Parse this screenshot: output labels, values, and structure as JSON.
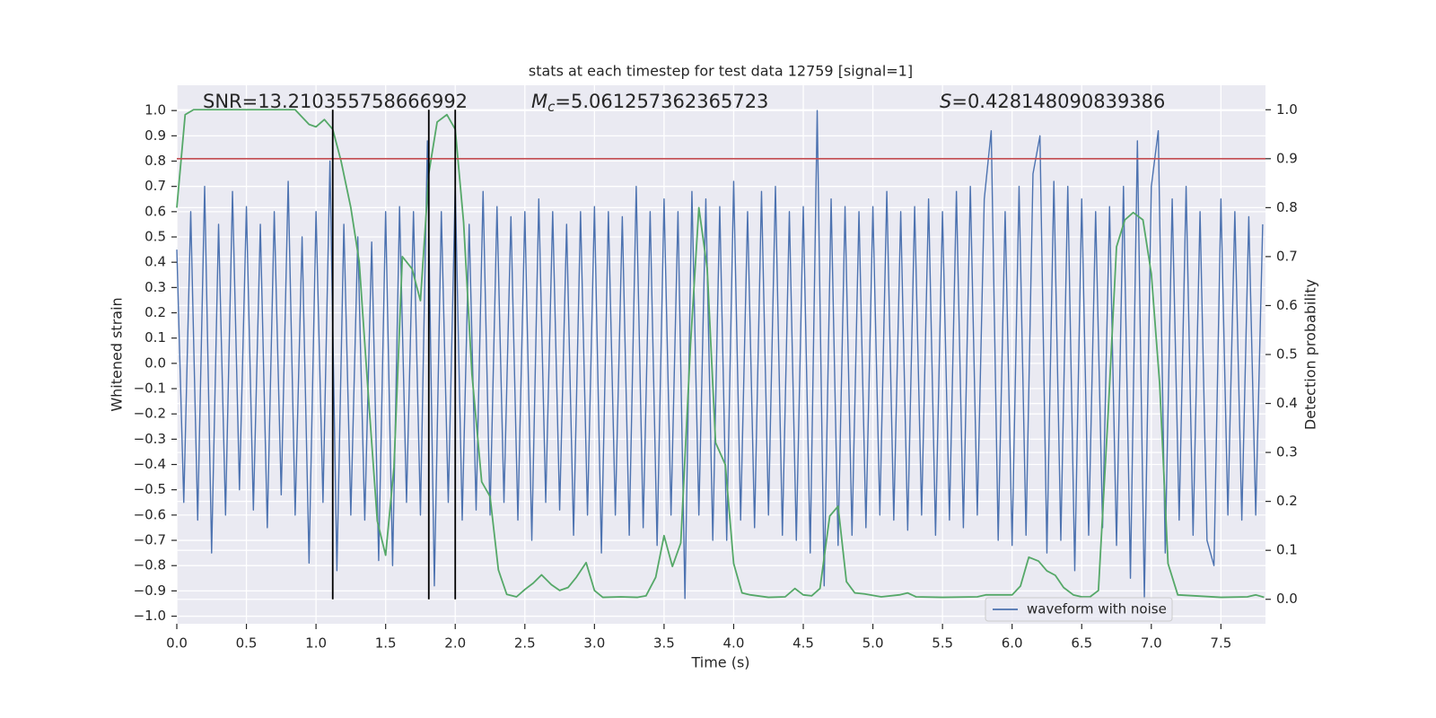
{
  "chart_data": {
    "type": "line",
    "title": "stats at each timestep for test data 12759 [signal=1]",
    "xlabel": "Time (s)",
    "ylabel": "Whitened strain",
    "y2label": "Detection probability",
    "xlim": [
      0,
      7.82
    ],
    "ylim": [
      -1.03,
      1.1
    ],
    "y2lim": [
      -0.05,
      1.05
    ],
    "grid": true,
    "legend": "lower right",
    "xticks": [
      {
        "value": 0,
        "label": "0.0"
      },
      {
        "value": 0.5,
        "label": "0.5"
      },
      {
        "value": 1,
        "label": "1.0"
      },
      {
        "value": 1.5,
        "label": "1.5"
      },
      {
        "value": 2,
        "label": "2.0"
      },
      {
        "value": 2.5,
        "label": "2.5"
      },
      {
        "value": 3,
        "label": "3.0"
      },
      {
        "value": 3.5,
        "label": "3.5"
      },
      {
        "value": 4,
        "label": "4.0"
      },
      {
        "value": 4.5,
        "label": "4.5"
      },
      {
        "value": 5,
        "label": "5.0"
      },
      {
        "value": 5.5,
        "label": "5.5"
      },
      {
        "value": 6,
        "label": "6.0"
      },
      {
        "value": 6.5,
        "label": "6.5"
      },
      {
        "value": 7,
        "label": "7.0"
      },
      {
        "value": 7.5,
        "label": "7.5"
      }
    ],
    "yticks": [
      {
        "value": -1,
        "label": "−1.0"
      },
      {
        "value": -0.9,
        "label": "−0.9"
      },
      {
        "value": -0.8,
        "label": "−0.8"
      },
      {
        "value": -0.7,
        "label": "−0.7"
      },
      {
        "value": -0.6,
        "label": "−0.6"
      },
      {
        "value": -0.5,
        "label": "−0.5"
      },
      {
        "value": -0.4,
        "label": "−0.4"
      },
      {
        "value": -0.3,
        "label": "−0.3"
      },
      {
        "value": -0.2,
        "label": "−0.2"
      },
      {
        "value": -0.1,
        "label": "−0.1"
      },
      {
        "value": 0,
        "label": "0.0"
      },
      {
        "value": 0.1,
        "label": "0.1"
      },
      {
        "value": 0.2,
        "label": "0.2"
      },
      {
        "value": 0.3,
        "label": "0.3"
      },
      {
        "value": 0.4,
        "label": "0.4"
      },
      {
        "value": 0.5,
        "label": "0.5"
      },
      {
        "value": 0.6,
        "label": "0.6"
      },
      {
        "value": 0.7,
        "label": "0.7"
      },
      {
        "value": 0.8,
        "label": "0.8"
      },
      {
        "value": 0.9,
        "label": "0.9"
      },
      {
        "value": 1,
        "label": "1.0"
      }
    ],
    "y2ticks": [
      {
        "value": 0,
        "label": "0.0"
      },
      {
        "value": 0.1,
        "label": "0.1"
      },
      {
        "value": 0.2,
        "label": "0.2"
      },
      {
        "value": 0.3,
        "label": "0.3"
      },
      {
        "value": 0.4,
        "label": "0.4"
      },
      {
        "value": 0.5,
        "label": "0.5"
      },
      {
        "value": 0.6,
        "label": "0.6"
      },
      {
        "value": 0.7,
        "label": "0.7"
      },
      {
        "value": 0.8,
        "label": "0.8"
      },
      {
        "value": 0.9,
        "label": "0.9"
      },
      {
        "value": 1,
        "label": "1.0"
      }
    ],
    "annotations": [
      {
        "text": "SNR=13.210355758666992"
      },
      {
        "italic": "M",
        "sub": "c",
        "text": "=5.061257362365723"
      },
      {
        "italic": "S",
        "text": "=0.428148090839386"
      }
    ],
    "hline": {
      "y2": 0.9,
      "color": "#c44e52"
    },
    "vlines": {
      "x": [
        1.12,
        1.81,
        2.0
      ],
      "y2": [
        0,
        1
      ],
      "color": "#000000"
    },
    "series": [
      {
        "name": "waveform with noise",
        "color": "#4c72b0",
        "x": [
          0,
          0.05,
          0.1,
          0.15,
          0.2,
          0.25,
          0.3,
          0.35,
          0.4,
          0.45,
          0.5,
          0.55,
          0.6,
          0.65,
          0.7,
          0.75,
          0.8,
          0.85,
          0.9,
          0.95,
          1,
          1.05,
          1.1,
          1.15,
          1.2,
          1.25,
          1.3,
          1.35,
          1.4,
          1.45,
          1.5,
          1.55,
          1.6,
          1.65,
          1.7,
          1.75,
          1.8,
          1.85,
          1.9,
          1.95,
          2,
          2.05,
          2.1,
          2.15,
          2.2,
          2.25,
          2.3,
          2.35,
          2.4,
          2.45,
          2.5,
          2.55,
          2.6,
          2.65,
          2.7,
          2.75,
          2.8,
          2.85,
          2.9,
          2.95,
          3,
          3.05,
          3.1,
          3.15,
          3.2,
          3.25,
          3.3,
          3.35,
          3.4,
          3.45,
          3.5,
          3.55,
          3.6,
          3.65,
          3.7,
          3.75,
          3.8,
          3.85,
          3.9,
          3.95,
          4,
          4.05,
          4.1,
          4.15,
          4.2,
          4.25,
          4.3,
          4.35,
          4.4,
          4.45,
          4.5,
          4.55,
          4.6,
          4.65,
          4.7,
          4.75,
          4.8,
          4.85,
          4.9,
          4.95,
          5,
          5.05,
          5.1,
          5.15,
          5.2,
          5.25,
          5.3,
          5.35,
          5.4,
          5.45,
          5.5,
          5.55,
          5.6,
          5.65,
          5.7,
          5.75,
          5.8,
          5.85,
          5.9,
          5.95,
          6,
          6.05,
          6.1,
          6.15,
          6.2,
          6.25,
          6.3,
          6.35,
          6.4,
          6.45,
          6.5,
          6.55,
          6.6,
          6.65,
          6.7,
          6.75,
          6.8,
          6.85,
          6.9,
          6.95,
          7,
          7.05,
          7.1,
          7.15,
          7.2,
          7.25,
          7.3,
          7.35,
          7.4,
          7.45,
          7.5,
          7.55,
          7.6,
          7.65,
          7.7,
          7.75,
          7.8
        ],
        "values": [
          0.45,
          -0.55,
          0.6,
          -0.62,
          0.7,
          -0.75,
          0.55,
          -0.6,
          0.68,
          -0.5,
          0.62,
          -0.58,
          0.55,
          -0.65,
          0.6,
          -0.52,
          0.72,
          -0.6,
          0.5,
          -0.79,
          0.6,
          -0.55,
          0.8,
          -0.82,
          0.55,
          -0.6,
          0.5,
          -0.62,
          0.48,
          -0.78,
          0.6,
          -0.8,
          0.62,
          -0.55,
          0.6,
          -0.6,
          0.88,
          -0.88,
          0.6,
          -0.55,
          0.7,
          -0.62,
          0.55,
          -0.58,
          0.68,
          -0.6,
          0.62,
          -0.55,
          0.58,
          -0.62,
          0.6,
          -0.7,
          0.65,
          -0.55,
          0.6,
          -0.58,
          0.55,
          -0.68,
          0.6,
          -0.6,
          0.62,
          -0.75,
          0.6,
          -0.6,
          0.58,
          -0.68,
          0.7,
          -0.65,
          0.6,
          -0.72,
          0.65,
          -0.6,
          0.6,
          -0.93,
          0.68,
          -0.6,
          0.65,
          -0.7,
          0.62,
          -0.7,
          0.72,
          -0.62,
          0.6,
          -0.65,
          0.68,
          -0.6,
          0.7,
          -0.68,
          0.6,
          -0.7,
          0.62,
          -0.75,
          1.0,
          -0.88,
          0.65,
          -0.72,
          0.62,
          -0.68,
          0.6,
          -0.65,
          0.62,
          -0.6,
          0.68,
          -0.62,
          0.6,
          -0.66,
          0.62,
          -0.6,
          0.65,
          -0.68,
          0.6,
          -0.62,
          0.68,
          -0.65,
          0.7,
          -0.6,
          0.65,
          0.92,
          -0.7,
          0.6,
          -0.72,
          0.7,
          -0.68,
          0.75,
          0.9,
          -0.75,
          0.72,
          -0.7,
          0.7,
          -0.82,
          0.65,
          -0.68,
          0.6,
          -0.65,
          0.62,
          -0.72,
          0.7,
          -0.85,
          0.88,
          -0.93,
          0.7,
          0.92,
          -0.75,
          0.65,
          -0.62,
          0.7,
          -0.68,
          0.6,
          -0.7,
          -0.8,
          0.65,
          -0.6,
          0.6,
          -0.62,
          0.58,
          -0.6,
          0.55
        ]
      },
      {
        "color": "#55a868",
        "axis": "y2",
        "x": [
          0,
          0.06,
          0.12,
          0.85,
          0.95,
          1,
          1.06,
          1.12,
          1.18,
          1.25,
          1.31,
          1.37,
          1.44,
          1.5,
          1.56,
          1.62,
          1.69,
          1.75,
          1.81,
          1.87,
          1.94,
          2,
          2.06,
          2.12,
          2.19,
          2.25,
          2.31,
          2.37,
          2.44,
          2.5,
          2.56,
          2.62,
          2.69,
          2.75,
          2.81,
          2.87,
          2.94,
          3,
          3.06,
          3.19,
          3.31,
          3.37,
          3.44,
          3.5,
          3.56,
          3.62,
          3.69,
          3.75,
          3.81,
          3.87,
          3.94,
          4,
          4.06,
          4.12,
          4.25,
          4.37,
          4.44,
          4.5,
          4.56,
          4.62,
          4.69,
          4.75,
          4.81,
          4.87,
          4.94,
          5.06,
          5.19,
          5.25,
          5.31,
          5.5,
          5.75,
          5.81,
          6,
          6.06,
          6.12,
          6.19,
          6.25,
          6.31,
          6.37,
          6.44,
          6.5,
          6.56,
          6.62,
          6.69,
          6.75,
          6.81,
          6.87,
          6.94,
          7,
          7.06,
          7.12,
          7.19,
          7.5,
          7.69,
          7.75,
          7.81
        ],
        "values": [
          0.8,
          0.99,
          1.0,
          1.0,
          0.97,
          0.965,
          0.98,
          0.96,
          0.895,
          0.8,
          0.69,
          0.44,
          0.16,
          0.09,
          0.27,
          0.7,
          0.675,
          0.61,
          0.87,
          0.975,
          0.99,
          0.96,
          0.77,
          0.46,
          0.24,
          0.21,
          0.06,
          0.01,
          0.005,
          0.02,
          0.033,
          0.05,
          0.03,
          0.018,
          0.024,
          0.045,
          0.075,
          0.018,
          0.004,
          0.005,
          0.004,
          0.007,
          0.045,
          0.13,
          0.067,
          0.115,
          0.52,
          0.8,
          0.675,
          0.32,
          0.275,
          0.073,
          0.013,
          0.009,
          0.004,
          0.005,
          0.022,
          0.009,
          0.007,
          0.022,
          0.17,
          0.19,
          0.036,
          0.013,
          0.011,
          0.005,
          0.009,
          0.013,
          0.005,
          0.004,
          0.005,
          0.009,
          0.009,
          0.027,
          0.086,
          0.078,
          0.058,
          0.049,
          0.024,
          0.009,
          0.005,
          0.005,
          0.018,
          0.38,
          0.72,
          0.775,
          0.79,
          0.775,
          0.665,
          0.44,
          0.073,
          0.009,
          0.004,
          0.005,
          0.009,
          0.004
        ]
      }
    ]
  }
}
